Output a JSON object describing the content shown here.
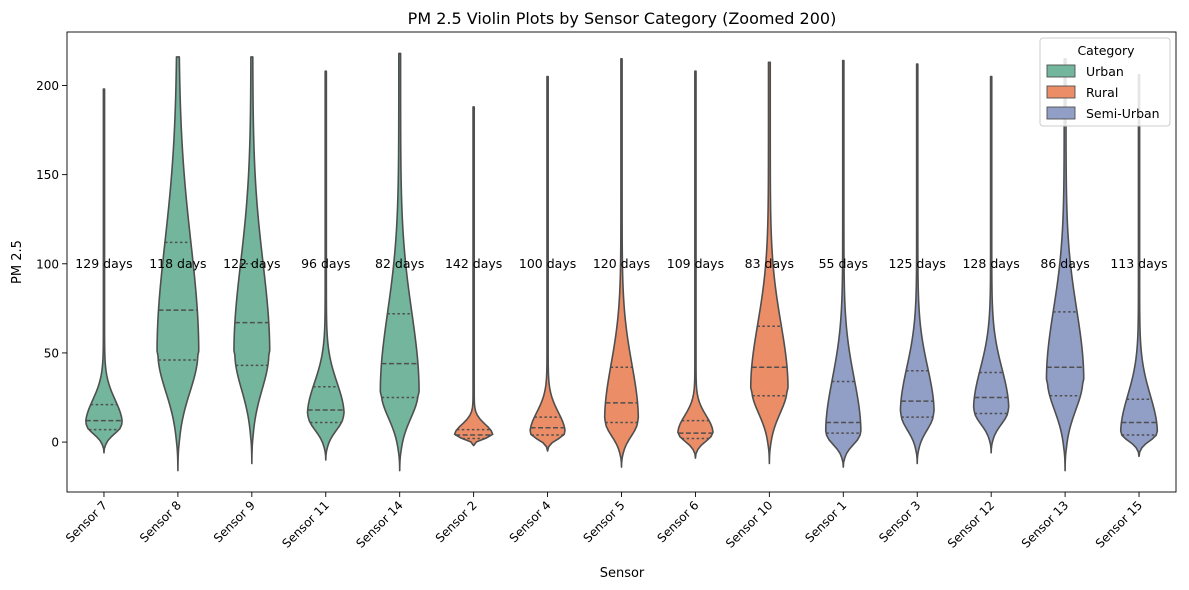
{
  "chart_data": {
    "type": "violin",
    "title": "PM 2.5 Violin Plots by Sensor Category (Zoomed 200)",
    "xlabel": "Sensor",
    "ylabel": "PM 2.5",
    "ylim": [
      -28,
      230
    ],
    "yticks": [
      0,
      50,
      100,
      150,
      200
    ],
    "grid": false,
    "legend": {
      "title": "Category",
      "position": "top-right",
      "entries": [
        {
          "name": "Urban",
          "color": "#73B69D"
        },
        {
          "name": "Rural",
          "color": "#EB8E67"
        },
        {
          "name": "Semi-Urban",
          "color": "#919FC7"
        }
      ]
    },
    "annotation_y": 100,
    "violins": [
      {
        "sensor": "Sensor 7",
        "category": "Urban",
        "days_label": "129 days",
        "min": -6,
        "max": 198,
        "q1": 7,
        "median": 12,
        "q3": 21,
        "mode": 10,
        "peak_halfwidth": 0.24,
        "tail_halfwidth": 0.008
      },
      {
        "sensor": "Sensor 8",
        "category": "Urban",
        "days_label": "118 days",
        "min": -16,
        "max": 216,
        "q1": 46,
        "median": 74,
        "q3": 112,
        "mode": 50,
        "peak_halfwidth": 0.27,
        "tail_halfwidth": 0.012
      },
      {
        "sensor": "Sensor 9",
        "category": "Urban",
        "days_label": "122 days",
        "min": -12,
        "max": 216,
        "q1": 43,
        "median": 67,
        "q3": 100,
        "mode": 50,
        "peak_halfwidth": 0.23,
        "tail_halfwidth": 0.012
      },
      {
        "sensor": "Sensor 11",
        "category": "Urban",
        "days_label": "96 days",
        "min": -10,
        "max": 208,
        "q1": 11,
        "median": 18,
        "q3": 31,
        "mode": 15,
        "peak_halfwidth": 0.24,
        "tail_halfwidth": 0.008
      },
      {
        "sensor": "Sensor 14",
        "category": "Urban",
        "days_label": "82 days",
        "min": -16,
        "max": 218,
        "q1": 25,
        "median": 44,
        "q3": 72,
        "mode": 28,
        "peak_halfwidth": 0.25,
        "tail_halfwidth": 0.012
      },
      {
        "sensor": "Sensor 2",
        "category": "Rural",
        "days_label": "142 days",
        "min": -2,
        "max": 188,
        "q1": 2,
        "median": 4,
        "q3": 7,
        "mode": 4,
        "peak_halfwidth": 0.25,
        "tail_halfwidth": 0.008
      },
      {
        "sensor": "Sensor 4",
        "category": "Rural",
        "days_label": "100 days",
        "min": -5,
        "max": 205,
        "q1": 4,
        "median": 8,
        "q3": 14,
        "mode": 5,
        "peak_halfwidth": 0.23,
        "tail_halfwidth": 0.008
      },
      {
        "sensor": "Sensor 5",
        "category": "Rural",
        "days_label": "120 days",
        "min": -14,
        "max": 215,
        "q1": 11,
        "median": 22,
        "q3": 42,
        "mode": 12,
        "peak_halfwidth": 0.22,
        "tail_halfwidth": 0.008
      },
      {
        "sensor": "Sensor 6",
        "category": "Rural",
        "days_label": "109 days",
        "min": -9,
        "max": 208,
        "q1": 2,
        "median": 5,
        "q3": 12,
        "mode": 5,
        "peak_halfwidth": 0.23,
        "tail_halfwidth": 0.008
      },
      {
        "sensor": "Sensor 10",
        "category": "Rural",
        "days_label": "83 days",
        "min": -12,
        "max": 213,
        "q1": 26,
        "median": 42,
        "q3": 65,
        "mode": 30,
        "peak_halfwidth": 0.24,
        "tail_halfwidth": 0.012
      },
      {
        "sensor": "Sensor 1",
        "category": "Semi-Urban",
        "days_label": "55 days",
        "min": -14,
        "max": 214,
        "q1": 5,
        "median": 11,
        "q3": 34,
        "mode": 5,
        "peak_halfwidth": 0.23,
        "tail_halfwidth": 0.008
      },
      {
        "sensor": "Sensor 3",
        "category": "Semi-Urban",
        "days_label": "125 days",
        "min": -12,
        "max": 212,
        "q1": 14,
        "median": 23,
        "q3": 40,
        "mode": 16,
        "peak_halfwidth": 0.22,
        "tail_halfwidth": 0.008
      },
      {
        "sensor": "Sensor 12",
        "category": "Semi-Urban",
        "days_label": "128 days",
        "min": -6,
        "max": 205,
        "q1": 16,
        "median": 25,
        "q3": 39,
        "mode": 18,
        "peak_halfwidth": 0.23,
        "tail_halfwidth": 0.008
      },
      {
        "sensor": "Sensor 13",
        "category": "Semi-Urban",
        "days_label": "86 days",
        "min": -16,
        "max": 215,
        "q1": 26,
        "median": 42,
        "q3": 73,
        "mode": 35,
        "peak_halfwidth": 0.24,
        "tail_halfwidth": 0.012
      },
      {
        "sensor": "Sensor 15",
        "category": "Semi-Urban",
        "days_label": "113 days",
        "min": -8,
        "max": 206,
        "q1": 4,
        "median": 11,
        "q3": 24,
        "mode": 5,
        "peak_halfwidth": 0.24,
        "tail_halfwidth": 0.008
      }
    ]
  }
}
